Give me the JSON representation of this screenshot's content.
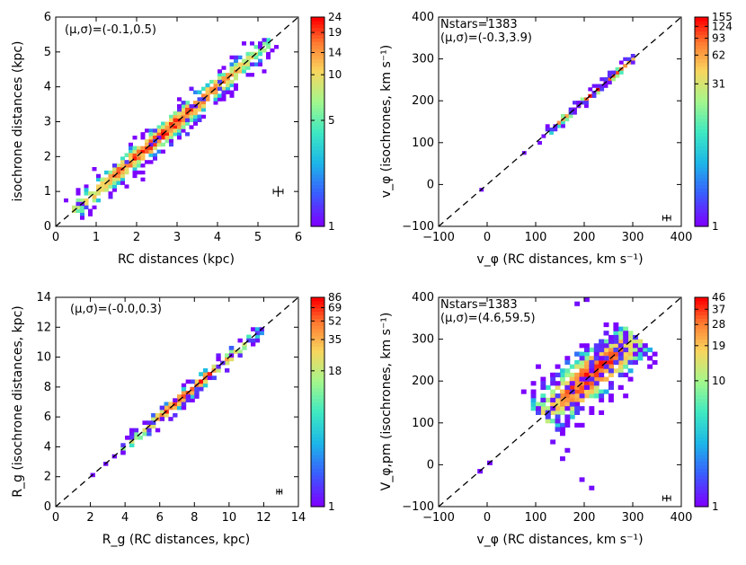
{
  "chart_data": [
    {
      "type": "heatmap",
      "panel": "top-left",
      "xlabel": "RC distances (kpc)",
      "ylabel": "isochrone distances (kpc)",
      "xlim": [
        0,
        6
      ],
      "ylim": [
        0,
        6
      ],
      "xticks": [
        0,
        1,
        2,
        3,
        4,
        5,
        6
      ],
      "yticks": [
        0,
        1,
        2,
        3,
        4,
        5,
        6
      ],
      "annotations": [
        "(μ,σ)=(-0.1,0.5)"
      ],
      "one_to_one_line": true,
      "error_bar": {
        "x": 5.5,
        "y": 1.0,
        "xerr": 0.12,
        "yerr": 0.15
      },
      "colorbar": {
        "ticks": [
          "1",
          "5",
          "10",
          "14",
          "19",
          "24"
        ],
        "tick_values": [
          1,
          5,
          10,
          14,
          19,
          24
        ],
        "max": 24
      },
      "bin": 0.1,
      "density": {
        "sigma": 0.25,
        "ridge_start": 0.4,
        "ridge_end": 5.3,
        "peak_center": 2.7,
        "peak_width": 1.0
      }
    },
    {
      "type": "heatmap",
      "panel": "top-right",
      "xlabel": "v_φ  (RC distances, km s⁻¹)",
      "ylabel": "v_φ  (isochrones, km s⁻¹)",
      "xlim": [
        -100,
        400
      ],
      "ylim": [
        -100,
        400
      ],
      "xticks": [
        -100,
        0,
        100,
        200,
        300,
        400
      ],
      "yticks": [
        -100,
        0,
        100,
        200,
        300,
        400
      ],
      "annotations": [
        "Nstars=1383",
        "(μ,σ)=(-0.3,3.9)"
      ],
      "one_to_one_line": true,
      "error_bar": {
        "x": 370,
        "y": -80,
        "xerr": 8,
        "yerr": 8
      },
      "colorbar": {
        "ticks": [
          "1",
          "31",
          "62",
          "93",
          "124",
          "155"
        ],
        "tick_values": [
          1,
          31,
          62,
          93,
          124,
          155
        ],
        "max": 155
      },
      "bin": 8,
      "density": {
        "sigma": 6,
        "ridge_start": 120,
        "ridge_end": 300,
        "peak_center": 215,
        "peak_width": 35
      },
      "outliers": [
        [
          -15,
          -15
        ],
        [
          70,
          70
        ],
        [
          100,
          98
        ],
        [
          108,
          110
        ]
      ]
    },
    {
      "type": "heatmap",
      "panel": "bottom-left",
      "xlabel": "R_g (RC distances, kpc)",
      "ylabel": "R_g (isochrone distances, kpc)",
      "xlim": [
        0,
        14
      ],
      "ylim": [
        0,
        14
      ],
      "xticks": [
        0,
        2,
        4,
        6,
        8,
        10,
        12,
        14
      ],
      "yticks": [
        0,
        2,
        4,
        6,
        8,
        10,
        12,
        14
      ],
      "annotations": [
        "(μ,σ)=(-0.0,0.3)"
      ],
      "one_to_one_line": true,
      "error_bar": {
        "x": 12.9,
        "y": 1.0,
        "xerr": 0.15,
        "yerr": 0.2
      },
      "colorbar": {
        "ticks": [
          "1",
          "18",
          "35",
          "52",
          "69",
          "86"
        ],
        "tick_values": [
          1,
          18,
          35,
          52,
          69,
          86
        ],
        "max": 86
      },
      "bin": 0.25,
      "density": {
        "sigma": 0.3,
        "ridge_start": 3.5,
        "ridge_end": 11.8,
        "peak_center": 7.6,
        "peak_width": 1.2
      },
      "outliers": [
        [
          2.1,
          2.1
        ],
        [
          2.7,
          2.7
        ],
        [
          3.3,
          3.3
        ]
      ]
    },
    {
      "type": "heatmap",
      "panel": "bottom-right",
      "xlabel": "v_φ  (RC distances, km s⁻¹)",
      "ylabel": "V_φ,pm  (isochrones, km s⁻¹)",
      "xlim": [
        -100,
        400
      ],
      "ylim": [
        -100,
        400
      ],
      "xticks": [
        -100,
        0,
        100,
        200,
        300,
        400
      ],
      "yticks": [
        -100,
        0,
        100,
        200,
        300,
        400
      ],
      "annotations": [
        "Nstars=1383",
        "(μ,σ)=(4.6,59.5)"
      ],
      "one_to_one_line": true,
      "error_bar": {
        "x": 370,
        "y": -80,
        "xerr": 8,
        "yerr": 8
      },
      "colorbar": {
        "ticks": [
          "1",
          "10",
          "19",
          "28",
          "37",
          "46"
        ],
        "tick_values": [
          1,
          10,
          19,
          28,
          37,
          46
        ],
        "max": 46
      },
      "bin": 10,
      "density": {
        "sigma": 45,
        "ridge_start": 110,
        "ridge_end": 300,
        "peak_center": 210,
        "peak_width": 40
      },
      "outliers": [
        [
          -20,
          -20
        ],
        [
          0,
          -5
        ],
        [
          130,
          50
        ],
        [
          160,
          30
        ],
        [
          180,
          380
        ],
        [
          200,
          390
        ],
        [
          230,
          400
        ],
        [
          190,
          -40
        ],
        [
          210,
          -60
        ],
        [
          150,
          10
        ]
      ]
    }
  ]
}
